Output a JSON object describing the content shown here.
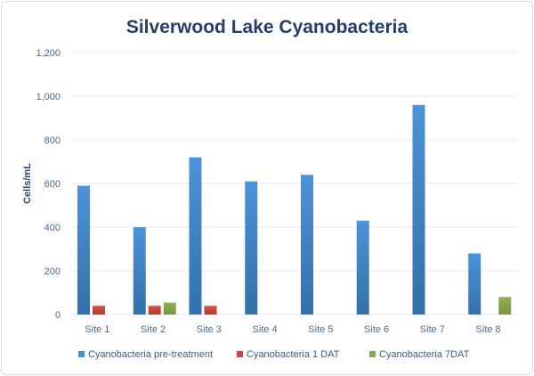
{
  "chart_data": {
    "type": "bar",
    "title": "Silverwood Lake Cyanobacteria",
    "xlabel": "",
    "ylabel": "Cells/mL",
    "ylim": [
      0,
      1200
    ],
    "yticks": [
      "0",
      "200",
      "400",
      "600",
      "800",
      "1,000",
      "1,200"
    ],
    "ytick_values": [
      0,
      200,
      400,
      600,
      800,
      1000,
      1200
    ],
    "grid": true,
    "legend_position": "bottom",
    "categories": [
      "Site 1",
      "Site 2",
      "Site 3",
      "Site 4",
      "Site 5",
      "Site 6",
      "Site 7",
      "Site 8"
    ],
    "series": [
      {
        "name": "Cyanobacteria pre-treatment",
        "color": "#4a8fd4",
        "values": [
          590,
          400,
          720,
          610,
          640,
          430,
          960,
          280
        ]
      },
      {
        "name": "Cyanobacteria 1 DAT",
        "color": "#d0453b",
        "values": [
          40,
          40,
          40,
          null,
          null,
          null,
          null,
          null
        ]
      },
      {
        "name": "Cyanobacteria 7DAT",
        "color": "#8aa84a",
        "values": [
          null,
          55,
          null,
          null,
          null,
          null,
          null,
          80
        ]
      }
    ]
  }
}
